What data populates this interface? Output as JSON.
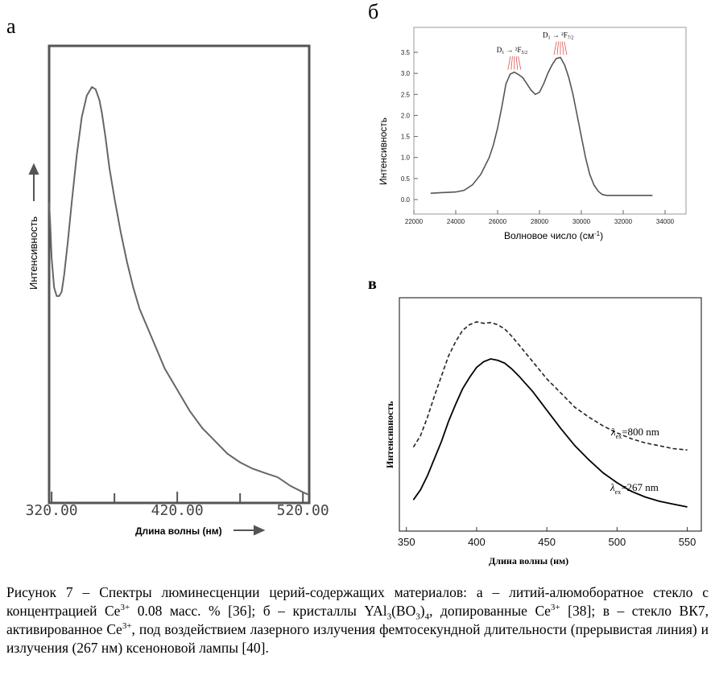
{
  "panels": {
    "a": {
      "letter": "а",
      "chart_data": {
        "type": "line",
        "ylabel": "Интенсивность",
        "xlabel": "Длина волны (нм)",
        "xlim": [
          318,
          525
        ],
        "ticks": [
          "320.00",
          "420.00",
          "520.00"
        ],
        "tick_values": [
          320,
          420,
          520
        ],
        "minor_ticks": [
          370,
          470
        ],
        "x": [
          318,
          319,
          320,
          322,
          324,
          326,
          328,
          330,
          333,
          336,
          340,
          344,
          348,
          352,
          355,
          358,
          360,
          363,
          366,
          370,
          375,
          380,
          385,
          390,
          400,
          410,
          420,
          430,
          440,
          450,
          460,
          470,
          480,
          490,
          500,
          510,
          520,
          524
        ],
        "y": [
          0.69,
          0.63,
          0.56,
          0.49,
          0.47,
          0.47,
          0.48,
          0.52,
          0.6,
          0.69,
          0.8,
          0.89,
          0.94,
          0.96,
          0.955,
          0.93,
          0.9,
          0.84,
          0.77,
          0.7,
          0.62,
          0.55,
          0.49,
          0.44,
          0.37,
          0.3,
          0.25,
          0.2,
          0.16,
          0.13,
          0.1,
          0.08,
          0.065,
          0.055,
          0.045,
          0.025,
          0.01,
          0.005
        ]
      }
    },
    "b": {
      "letter": "б",
      "chart_data": {
        "type": "line",
        "ylabel": "Интенсивность",
        "xlabel_main": "Волновое число (см",
        "xlabel_sup": "-1",
        "xlabel_end": ")",
        "xlim": [
          22000,
          35000
        ],
        "ylim": [
          0,
          3.75
        ],
        "xticks": [
          "22000",
          "24000",
          "26000",
          "28000",
          "30000",
          "32000",
          "34000"
        ],
        "xtick_values": [
          22000,
          24000,
          26000,
          28000,
          30000,
          32000,
          34000
        ],
        "yticks": [
          "0.0",
          "0.5",
          "1.0",
          "1.5",
          "2.0",
          "2.5",
          "3.0",
          "3.5"
        ],
        "ytick_values": [
          0,
          0.5,
          1.0,
          1.5,
          2.0,
          2.5,
          3.0,
          3.5
        ],
        "x": [
          22800,
          23200,
          23600,
          24000,
          24400,
          24800,
          25200,
          25600,
          25800,
          26000,
          26200,
          26400,
          26600,
          26800,
          27000,
          27200,
          27400,
          27600,
          27800,
          28000,
          28200,
          28400,
          28600,
          28800,
          29000,
          29200,
          29400,
          29600,
          29800,
          30000,
          30200,
          30400,
          30600,
          30800,
          31000,
          31200,
          31600,
          32400,
          33400
        ],
        "y": [
          0.15,
          0.16,
          0.17,
          0.18,
          0.22,
          0.35,
          0.6,
          1.0,
          1.3,
          1.7,
          2.2,
          2.75,
          2.98,
          3.03,
          2.97,
          2.9,
          2.75,
          2.6,
          2.5,
          2.55,
          2.75,
          3.0,
          3.2,
          3.35,
          3.38,
          3.2,
          2.9,
          2.5,
          2.0,
          1.5,
          1.0,
          0.6,
          0.35,
          0.2,
          0.12,
          0.1,
          0.1,
          0.1,
          0.1
        ],
        "annotations": [
          {
            "label_main": "D",
            "label_sub": "1",
            "label_tail": "²F",
            "label_tail_sub": "5/2",
            "x": 26800,
            "y": 3.5
          },
          {
            "label_main": "D",
            "label_sub": "1",
            "label_tail": "²F",
            "label_tail_sub": "7/2",
            "x": 29000,
            "y": 3.85
          }
        ]
      }
    },
    "v": {
      "letter": "в",
      "chart_data": {
        "type": "line",
        "ylabel": "Интенсивность",
        "xlabel": "Длина волны (нм)",
        "xlim": [
          345,
          560
        ],
        "xticks": [
          "350",
          "400",
          "450",
          "500",
          "550"
        ],
        "xtick_values": [
          350,
          400,
          450,
          500,
          550
        ],
        "series": [
          {
            "name": "λ_ex=800 nm",
            "label_main": "λ",
            "label_sub": "ex",
            "label_value": "=800 nm",
            "style": "dashed",
            "x": [
              355,
              360,
              365,
              370,
              375,
              380,
              385,
              390,
              395,
              400,
              405,
              410,
              415,
              420,
              425,
              430,
              440,
              450,
              460,
              470,
              480,
              490,
              500,
              510,
              520,
              530,
              540,
              550
            ],
            "y": [
              0.12,
              0.2,
              0.33,
              0.48,
              0.62,
              0.76,
              0.86,
              0.94,
              0.98,
              1.0,
              0.99,
              0.995,
              0.98,
              0.95,
              0.9,
              0.84,
              0.72,
              0.6,
              0.5,
              0.4,
              0.33,
              0.27,
              0.22,
              0.18,
              0.15,
              0.13,
              0.11,
              0.1
            ]
          },
          {
            "name": "λ_ex=267 nm",
            "label_main": "λ",
            "label_sub": "ex",
            "label_value": "=267 nm",
            "style": "solid",
            "x": [
              355,
              360,
              365,
              370,
              375,
              380,
              385,
              390,
              395,
              400,
              405,
              410,
              415,
              420,
              425,
              430,
              440,
              450,
              460,
              470,
              480,
              490,
              500,
              510,
              520,
              530,
              540,
              550
            ],
            "y": [
              -0.25,
              -0.18,
              -0.08,
              0.04,
              0.16,
              0.3,
              0.42,
              0.53,
              0.61,
              0.68,
              0.72,
              0.74,
              0.73,
              0.71,
              0.67,
              0.62,
              0.51,
              0.38,
              0.25,
              0.13,
              0.03,
              -0.06,
              -0.13,
              -0.19,
              -0.23,
              -0.26,
              -0.28,
              -0.3
            ]
          }
        ]
      }
    }
  },
  "caption": {
    "p1": "Рисунок 7 – Спектры люминесценции церий-содержащих материалов: а – литий-алюмоборатное стекло с концентрацией Ce",
    "p1_sup": "3+",
    "p2": " 0.08 масс. % [36]; б – кристаллы YAl",
    "p2_sub": "3",
    "p3": "(BO",
    "p3_sub": "3",
    "p4": ")",
    "p4_sub": "4",
    "p5": ", допированные Ce",
    "p5_sup": "3+",
    "p6": " [38]; в – стекло ВК7, активированное Ce",
    "p6_sup": "3+",
    "p7": ", под воздействием лазерного излучения фемтосекундной длительности (прерывистая линия) и излучения (267 нм) ксеноновой лампы [40]."
  }
}
